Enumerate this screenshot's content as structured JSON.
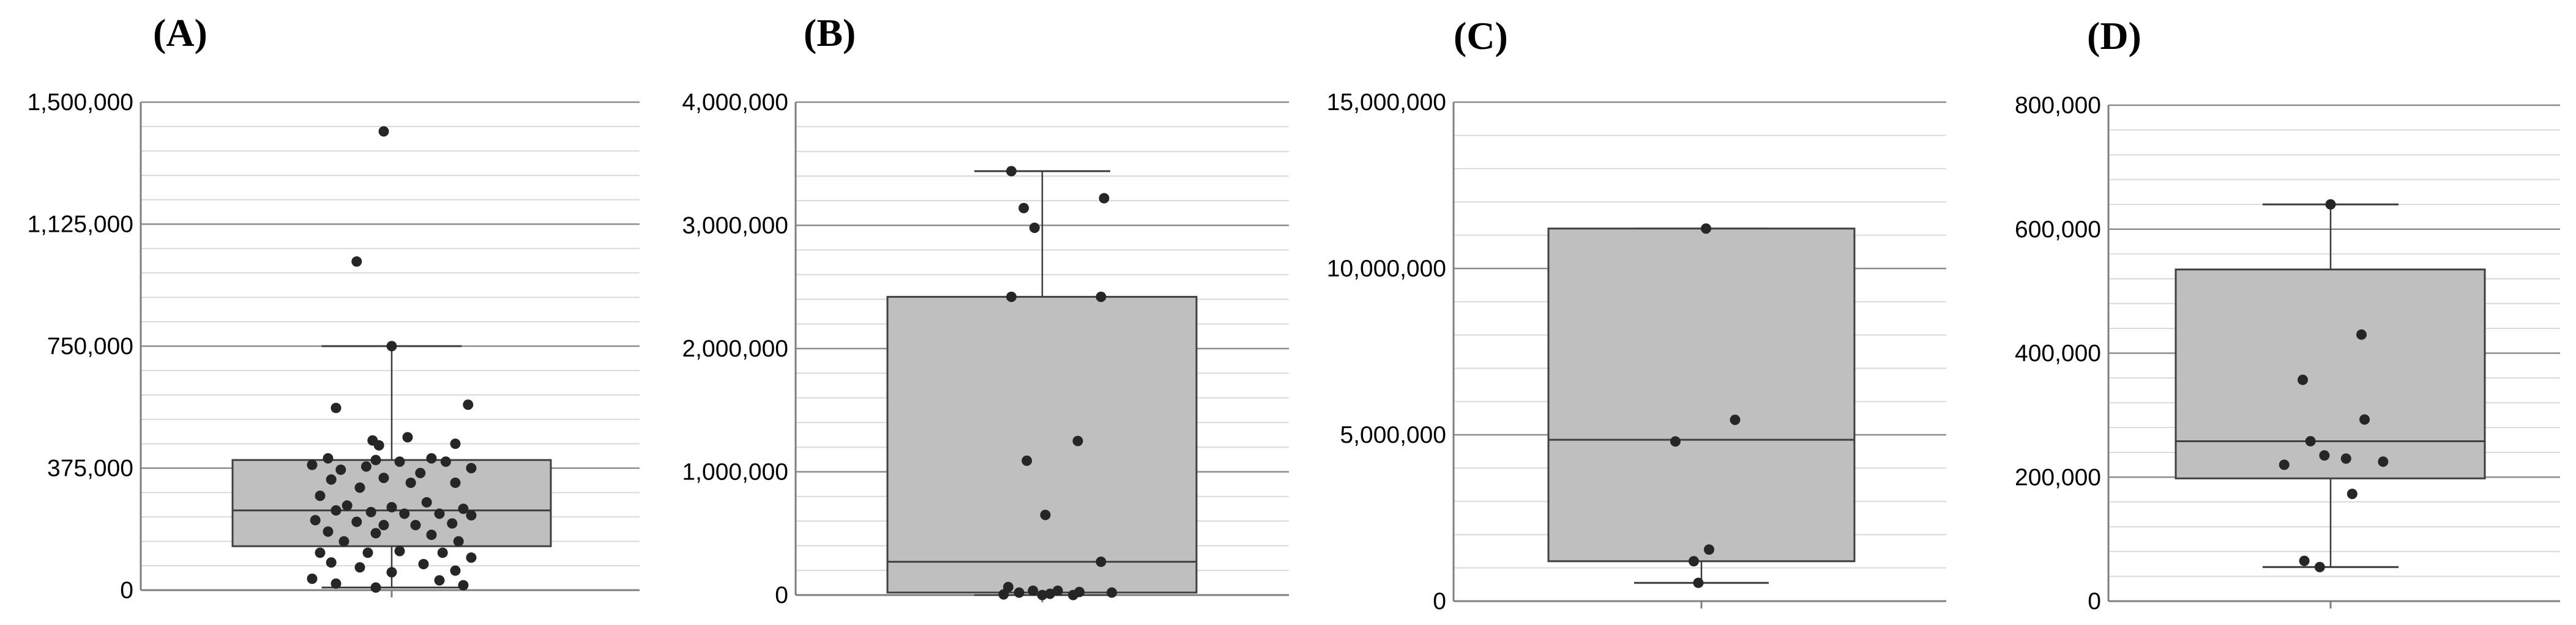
{
  "chart_data": [
    {
      "type": "box",
      "panel": "(A)",
      "ylim": [
        0,
        1500000
      ],
      "ticks": [
        0,
        375000,
        750000,
        1125000,
        1500000
      ],
      "tick_labels": [
        "0",
        "375,000",
        "750,000",
        "1,125,000",
        "1,500,000"
      ],
      "box": {
        "whisker_low": 8000,
        "q1": 135000,
        "median": 245000,
        "q3": 400000,
        "whisker_high": 750000
      },
      "points": [
        [
          -0.05,
          1410000
        ],
        [
          -0.22,
          1010000
        ],
        [
          0.0,
          750000
        ],
        [
          -0.35,
          560000
        ],
        [
          0.48,
          570000
        ],
        [
          0.4,
          450000
        ],
        [
          0.1,
          470000
        ],
        [
          -0.12,
          460000
        ],
        [
          -0.08,
          445000
        ],
        [
          -0.4,
          405000
        ],
        [
          -0.1,
          400000
        ],
        [
          0.25,
          405000
        ],
        [
          0.34,
          395000
        ],
        [
          0.05,
          395000
        ],
        [
          -0.5,
          385000
        ],
        [
          -0.32,
          370000
        ],
        [
          -0.16,
          380000
        ],
        [
          0.18,
          360000
        ],
        [
          0.5,
          375000
        ],
        [
          -0.38,
          340000
        ],
        [
          -0.2,
          315000
        ],
        [
          0.12,
          330000
        ],
        [
          0.4,
          330000
        ],
        [
          -0.05,
          345000
        ],
        [
          -0.45,
          290000
        ],
        [
          -0.28,
          260000
        ],
        [
          0.0,
          255000
        ],
        [
          0.22,
          270000
        ],
        [
          0.45,
          250000
        ],
        [
          -0.35,
          245000
        ],
        [
          -0.13,
          240000
        ],
        [
          0.08,
          235000
        ],
        [
          0.3,
          235000
        ],
        [
          0.5,
          230000
        ],
        [
          -0.48,
          215000
        ],
        [
          -0.22,
          210000
        ],
        [
          0.15,
          200000
        ],
        [
          0.38,
          205000
        ],
        [
          -0.05,
          200000
        ],
        [
          -0.4,
          180000
        ],
        [
          -0.1,
          175000
        ],
        [
          0.25,
          170000
        ],
        [
          0.42,
          150000
        ],
        [
          -0.3,
          150000
        ],
        [
          -0.45,
          115000
        ],
        [
          -0.15,
          115000
        ],
        [
          0.05,
          120000
        ],
        [
          0.32,
          115000
        ],
        [
          0.5,
          100000
        ],
        [
          -0.38,
          85000
        ],
        [
          -0.2,
          70000
        ],
        [
          0.2,
          80000
        ],
        [
          0.4,
          60000
        ],
        [
          0.0,
          55000
        ],
        [
          -0.5,
          35000
        ],
        [
          -0.35,
          20000
        ],
        [
          0.3,
          30000
        ],
        [
          0.45,
          15000
        ],
        [
          -0.1,
          8000
        ]
      ]
    },
    {
      "type": "box",
      "panel": "(B)",
      "ylim": [
        0,
        4000000
      ],
      "ticks": [
        0,
        1000000,
        2000000,
        3000000,
        4000000
      ],
      "tick_labels": [
        "0",
        "1,000,000",
        "2,000,000",
        "3,000,000",
        "4,000,000"
      ],
      "box": {
        "whisker_low": 0,
        "q1": 20000,
        "median": 270000,
        "q3": 2420000,
        "whisker_high": 3440000
      },
      "points": [
        [
          -0.2,
          3440000
        ],
        [
          0.4,
          3220000
        ],
        [
          -0.12,
          3140000
        ],
        [
          -0.05,
          2980000
        ],
        [
          -0.2,
          2420000
        ],
        [
          0.38,
          2420000
        ],
        [
          0.23,
          1250000
        ],
        [
          -0.1,
          1090000
        ],
        [
          0.02,
          650000
        ],
        [
          0.38,
          270000
        ],
        [
          -0.22,
          65000
        ],
        [
          -0.06,
          35000
        ],
        [
          -0.15,
          20000
        ],
        [
          0.05,
          10000
        ],
        [
          0.2,
          0
        ],
        [
          0.1,
          35000
        ],
        [
          0.24,
          25000
        ],
        [
          0.45,
          20000
        ],
        [
          -0.25,
          5000
        ],
        [
          0.0,
          0
        ]
      ]
    },
    {
      "type": "box",
      "panel": "(C)",
      "ylim": [
        0,
        15000000
      ],
      "ticks": [
        0,
        5000000,
        10000000,
        15000000
      ],
      "tick_labels": [
        "0",
        "5,000,000",
        "10,000,000",
        "15,000,000"
      ],
      "box": {
        "whisker_low": 550000,
        "q1": 1200000,
        "median": 4850000,
        "q3": 11200000,
        "whisker_high": 11200000
      },
      "points": [
        [
          0.03,
          11200000
        ],
        [
          0.22,
          5450000
        ],
        [
          -0.17,
          4800000
        ],
        [
          0.05,
          1550000
        ],
        [
          -0.05,
          1200000
        ],
        [
          -0.02,
          550000
        ]
      ]
    },
    {
      "type": "box",
      "panel": "(D)",
      "ylim": [
        0,
        800000
      ],
      "ticks": [
        0,
        200000,
        400000,
        600000,
        800000
      ],
      "tick_labels": [
        "0",
        "200,000",
        "400,000",
        "600,000",
        "800,000"
      ],
      "box": {
        "whisker_low": 55000,
        "q1": 198000,
        "median": 258000,
        "q3": 535000,
        "whisker_high": 640000
      },
      "points": [
        [
          0.0,
          640000
        ],
        [
          0.2,
          430000
        ],
        [
          -0.18,
          357000
        ],
        [
          0.22,
          293000
        ],
        [
          -0.13,
          258000
        ],
        [
          -0.04,
          235000
        ],
        [
          0.1,
          230000
        ],
        [
          -0.3,
          220000
        ],
        [
          0.34,
          225000
        ],
        [
          0.14,
          173000
        ],
        [
          -0.17,
          65000
        ],
        [
          -0.07,
          55000
        ]
      ]
    }
  ]
}
